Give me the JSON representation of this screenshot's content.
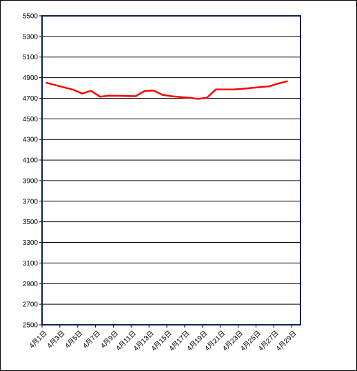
{
  "chart_data": {
    "type": "line",
    "title": "",
    "xlabel": "",
    "ylabel": "",
    "ylim": [
      2500,
      5500
    ],
    "yticks": [
      2500,
      2700,
      2900,
      3100,
      3300,
      3500,
      3700,
      3900,
      4100,
      4300,
      4500,
      4700,
      4900,
      5100,
      5300,
      5500
    ],
    "xlim": [
      1,
      30
    ],
    "xticks": [
      {
        "day": 1,
        "label": "4月1日"
      },
      {
        "day": 3,
        "label": "4月3日"
      },
      {
        "day": 5,
        "label": "4月5日"
      },
      {
        "day": 7,
        "label": "4月7日"
      },
      {
        "day": 9,
        "label": "4月9日"
      },
      {
        "day": 11,
        "label": "4月11日"
      },
      {
        "day": 13,
        "label": "4月13日"
      },
      {
        "day": 15,
        "label": "4月15日"
      },
      {
        "day": 17,
        "label": "4月17日"
      },
      {
        "day": 19,
        "label": "4月19日"
      },
      {
        "day": 21,
        "label": "4月21日"
      },
      {
        "day": 23,
        "label": "4月23日"
      },
      {
        "day": 25,
        "label": "4月25日"
      },
      {
        "day": 27,
        "label": "4月27日"
      },
      {
        "day": 29,
        "label": "4月29日"
      }
    ],
    "grid": true,
    "legend": "none",
    "series": [
      {
        "color": "#ff0000",
        "x": [
          1.5,
          2.5,
          3.5,
          4.5,
          5.5,
          6.5,
          7.5,
          8.5,
          9.5,
          10.5,
          11.5,
          12.5,
          13.5,
          14.5,
          15.5,
          16.5,
          17.5,
          18.5,
          19.5,
          20.5,
          21.5,
          22.5,
          23.5,
          24.5,
          25.5,
          26.5,
          27.5,
          28.5
        ],
        "values": [
          4850,
          4828,
          4805,
          4783,
          4745,
          4772,
          4715,
          4725,
          4724,
          4722,
          4720,
          4770,
          4775,
          4733,
          4720,
          4712,
          4705,
          4694,
          4705,
          4785,
          4785,
          4785,
          4792,
          4800,
          4808,
          4815,
          4843,
          4865
        ]
      }
    ]
  }
}
